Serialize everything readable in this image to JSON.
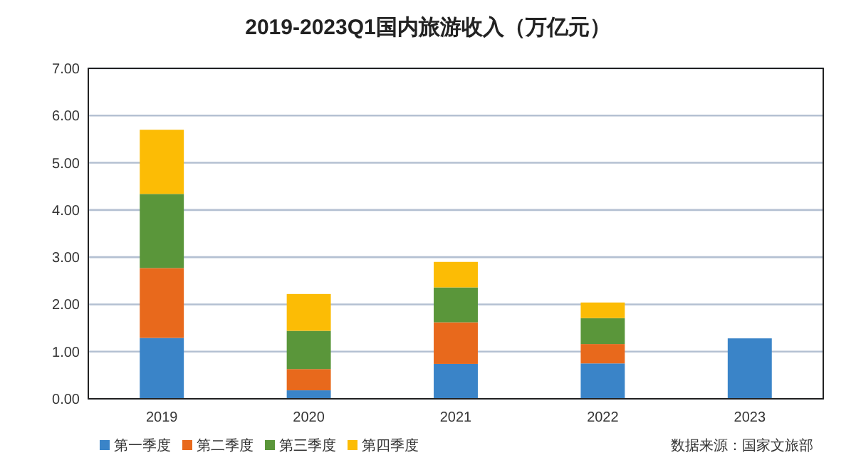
{
  "chart_data": {
    "type": "bar",
    "title": "2019-2023Q1国内旅游收入（万亿元）",
    "categories": [
      "2019",
      "2020",
      "2021",
      "2022",
      "2023"
    ],
    "stacked": true,
    "grid": "y",
    "legend": "bottom left",
    "ylim": [
      0,
      7
    ],
    "yticks": [
      {
        "value": 0,
        "label": "0.00"
      },
      {
        "value": 1,
        "label": "1.00"
      },
      {
        "value": 2,
        "label": "2.00"
      },
      {
        "value": 3,
        "label": "3.00"
      },
      {
        "value": 4,
        "label": "4.00"
      },
      {
        "value": 5,
        "label": "5.00"
      },
      {
        "value": 6,
        "label": "6.00"
      },
      {
        "value": 7,
        "label": "7.00"
      }
    ],
    "series": [
      {
        "name": "第一季度",
        "color": "#3a84c8",
        "values": [
          1.29,
          0.18,
          0.74,
          0.75,
          1.28
        ]
      },
      {
        "name": "第二季度",
        "color": "#e8691c",
        "values": [
          1.48,
          0.45,
          0.88,
          0.41,
          null
        ]
      },
      {
        "name": "第三季度",
        "color": "#5a963a",
        "values": [
          1.57,
          0.81,
          0.74,
          0.55,
          null
        ]
      },
      {
        "name": "第四季度",
        "color": "#fcbc05",
        "values": [
          1.36,
          0.78,
          0.54,
          0.33,
          null
        ]
      }
    ],
    "annotations": [
      "数据来源：国家文旅部"
    ]
  }
}
